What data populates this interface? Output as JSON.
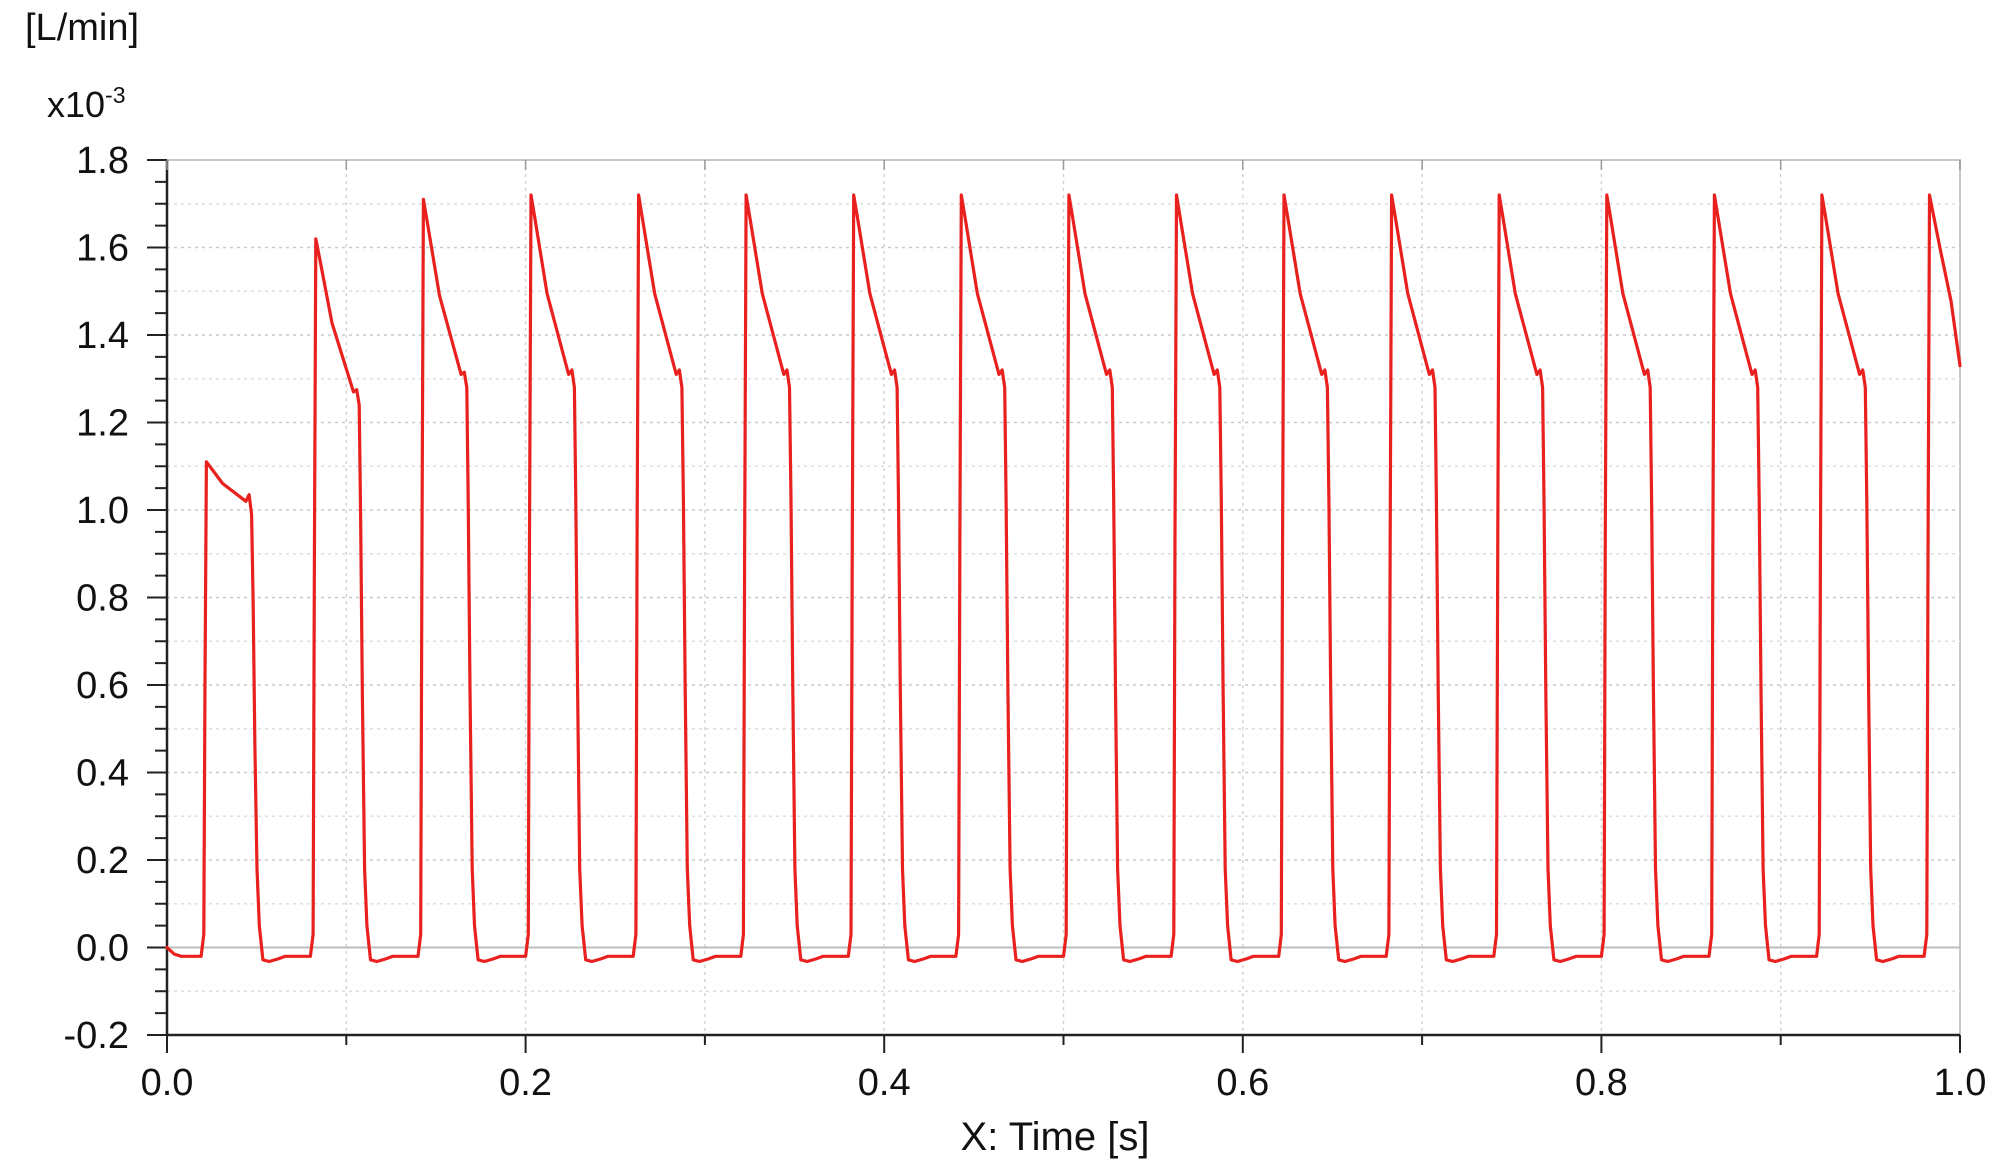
{
  "chart_data": {
    "type": "line",
    "unit_label": "[L/min]",
    "scale_label": "x10",
    "scale_exponent": "-3",
    "xlabel": "X: Time [s]",
    "ylabel": "",
    "xlim": [
      0.0,
      1.0
    ],
    "ylim": [
      -0.2,
      1.8
    ],
    "x_ticks": [
      "0.0",
      "0.2",
      "0.4",
      "0.6",
      "0.8",
      "1.0"
    ],
    "y_ticks": [
      "-0.2",
      "0.0",
      "0.2",
      "0.4",
      "0.6",
      "0.8",
      "1.0",
      "1.2",
      "1.4",
      "1.6",
      "1.8"
    ],
    "grid": true,
    "legend": "none",
    "line_color": "#e8201e",
    "baseline": -0.02,
    "period": 0.06,
    "pulses": [
      {
        "rise": 0.022,
        "peak": 1.11,
        "shoulder": 1.02,
        "notch": 1.035,
        "fall": 0.048
      },
      {
        "rise": 0.083,
        "peak": 1.62,
        "shoulder": 1.27,
        "notch": 1.275,
        "fall": 0.108
      },
      {
        "rise": 0.143,
        "peak": 1.71,
        "shoulder": 1.31,
        "notch": 1.315,
        "fall": 0.168
      },
      {
        "rise": 0.203,
        "peak": 1.72,
        "shoulder": 1.31,
        "notch": 1.32,
        "fall": 0.228
      },
      {
        "rise": 0.263,
        "peak": 1.72,
        "shoulder": 1.31,
        "notch": 1.32,
        "fall": 0.288
      },
      {
        "rise": 0.323,
        "peak": 1.72,
        "shoulder": 1.31,
        "notch": 1.32,
        "fall": 0.348
      },
      {
        "rise": 0.383,
        "peak": 1.72,
        "shoulder": 1.31,
        "notch": 1.32,
        "fall": 0.408
      },
      {
        "rise": 0.443,
        "peak": 1.72,
        "shoulder": 1.31,
        "notch": 1.32,
        "fall": 0.468
      },
      {
        "rise": 0.503,
        "peak": 1.72,
        "shoulder": 1.31,
        "notch": 1.32,
        "fall": 0.528
      },
      {
        "rise": 0.563,
        "peak": 1.72,
        "shoulder": 1.31,
        "notch": 1.32,
        "fall": 0.588
      },
      {
        "rise": 0.623,
        "peak": 1.72,
        "shoulder": 1.31,
        "notch": 1.32,
        "fall": 0.648
      },
      {
        "rise": 0.683,
        "peak": 1.72,
        "shoulder": 1.31,
        "notch": 1.32,
        "fall": 0.708
      },
      {
        "rise": 0.743,
        "peak": 1.72,
        "shoulder": 1.31,
        "notch": 1.32,
        "fall": 0.768
      },
      {
        "rise": 0.803,
        "peak": 1.72,
        "shoulder": 1.31,
        "notch": 1.32,
        "fall": 0.828
      },
      {
        "rise": 0.863,
        "peak": 1.72,
        "shoulder": 1.31,
        "notch": 1.32,
        "fall": 0.888
      },
      {
        "rise": 0.923,
        "peak": 1.72,
        "shoulder": 1.31,
        "notch": 1.32,
        "fall": 0.948
      },
      {
        "rise": 0.983,
        "peak": 1.72,
        "end_value": 1.33
      }
    ]
  }
}
